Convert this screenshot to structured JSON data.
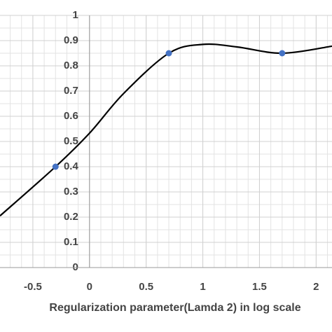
{
  "chart_data": {
    "type": "line",
    "x_label": "Regularization parameter(Lamda 2) in log scale",
    "xlim": [
      -0.79,
      2.14
    ],
    "ylim": [
      0,
      1
    ],
    "xticks": [
      -0.5,
      0,
      0.5,
      1,
      1.5,
      2
    ],
    "yticks": [
      0,
      0.1,
      0.2,
      0.3,
      0.4,
      0.5,
      0.6,
      0.7,
      0.8,
      0.9,
      1
    ],
    "grid": true,
    "minor_grid": true,
    "series": [
      {
        "type": "line",
        "color": "#000000",
        "x": [
          -0.79,
          -0.3,
          0,
          0.3,
          0.7,
          1.0,
          1.3,
          1.7,
          2.14
        ],
        "values": [
          0.205,
          0.4,
          0.533,
          0.69,
          0.85,
          0.885,
          0.875,
          0.85,
          0.878
        ]
      },
      {
        "type": "scatter",
        "color": "#4472c4",
        "x": [
          -0.3,
          0.7,
          1.7
        ],
        "values": [
          0.4,
          0.85,
          0.85
        ]
      }
    ]
  }
}
